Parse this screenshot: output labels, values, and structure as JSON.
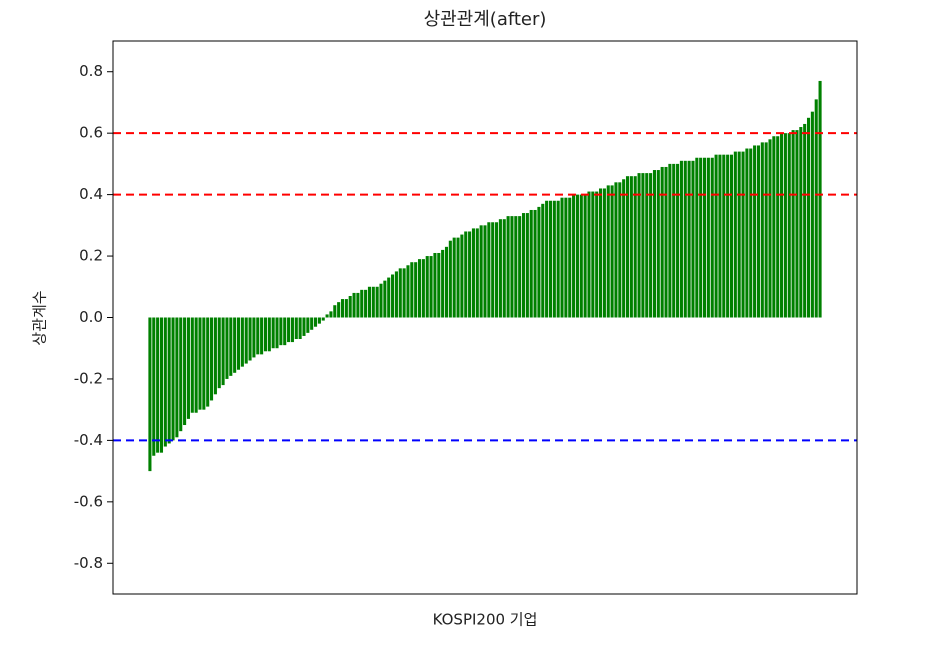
{
  "chart_data": {
    "type": "bar",
    "title": "상관관계(after)",
    "xlabel": "KOSPI200 기업",
    "ylabel": "상관계수",
    "categories": [
      null,
      null,
      null,
      null,
      null,
      null,
      null,
      null,
      null,
      null,
      null,
      null,
      null,
      null,
      null,
      null,
      null,
      null,
      null,
      null,
      null,
      null,
      null,
      null,
      null,
      null,
      null,
      null,
      null,
      null,
      null,
      null,
      null,
      null,
      null,
      null,
      null,
      null,
      null,
      null,
      null,
      null,
      null,
      null,
      null,
      null,
      null,
      null,
      null,
      null,
      null,
      null,
      null,
      null,
      null,
      null,
      null,
      null,
      null,
      null,
      null,
      null,
      null,
      null,
      null,
      null,
      null,
      null,
      null,
      null,
      null,
      null,
      null,
      null,
      null,
      null,
      null,
      null,
      null,
      null,
      null,
      null,
      null,
      null,
      null,
      null,
      null,
      null,
      null,
      null,
      null,
      null,
      null,
      null,
      null,
      null,
      null,
      null,
      null,
      null,
      null,
      null,
      null,
      null,
      null,
      null,
      null,
      null,
      null,
      null,
      null,
      null,
      null,
      null,
      null,
      null,
      null,
      null,
      null,
      null,
      null,
      null,
      null,
      null,
      null,
      null,
      null,
      null,
      null,
      null,
      null,
      null,
      null,
      null,
      null,
      null,
      null,
      null,
      null,
      null,
      null,
      null,
      null,
      null,
      null,
      null,
      null,
      null,
      null,
      null,
      null,
      null,
      null,
      null,
      null,
      null,
      null,
      null,
      null,
      null,
      null,
      null,
      null,
      null,
      null,
      null,
      null,
      null,
      null,
      null,
      null,
      null,
      null,
      null,
      null
    ],
    "values": [
      -0.5,
      -0.45,
      -0.44,
      -0.44,
      -0.42,
      -0.41,
      -0.4,
      -0.39,
      -0.37,
      -0.35,
      -0.33,
      -0.31,
      -0.31,
      -0.3,
      -0.3,
      -0.29,
      -0.27,
      -0.25,
      -0.23,
      -0.22,
      -0.2,
      -0.19,
      -0.18,
      -0.17,
      -0.16,
      -0.15,
      -0.14,
      -0.13,
      -0.12,
      -0.12,
      -0.11,
      -0.11,
      -0.1,
      -0.1,
      -0.09,
      -0.09,
      -0.08,
      -0.08,
      -0.07,
      -0.07,
      -0.06,
      -0.05,
      -0.04,
      -0.03,
      -0.02,
      -0.01,
      0.01,
      0.02,
      0.04,
      0.05,
      0.06,
      0.06,
      0.07,
      0.08,
      0.08,
      0.09,
      0.09,
      0.1,
      0.1,
      0.1,
      0.11,
      0.12,
      0.13,
      0.14,
      0.15,
      0.16,
      0.16,
      0.17,
      0.18,
      0.18,
      0.19,
      0.19,
      0.2,
      0.2,
      0.21,
      0.21,
      0.22,
      0.23,
      0.25,
      0.26,
      0.26,
      0.27,
      0.28,
      0.28,
      0.29,
      0.29,
      0.3,
      0.3,
      0.31,
      0.31,
      0.31,
      0.32,
      0.32,
      0.33,
      0.33,
      0.33,
      0.33,
      0.34,
      0.34,
      0.35,
      0.35,
      0.36,
      0.37,
      0.38,
      0.38,
      0.38,
      0.38,
      0.39,
      0.39,
      0.39,
      0.4,
      0.4,
      0.4,
      0.4,
      0.41,
      0.41,
      0.41,
      0.42,
      0.42,
      0.43,
      0.43,
      0.44,
      0.44,
      0.45,
      0.46,
      0.46,
      0.46,
      0.47,
      0.47,
      0.47,
      0.47,
      0.48,
      0.48,
      0.49,
      0.49,
      0.5,
      0.5,
      0.5,
      0.51,
      0.51,
      0.51,
      0.51,
      0.52,
      0.52,
      0.52,
      0.52,
      0.52,
      0.53,
      0.53,
      0.53,
      0.53,
      0.53,
      0.54,
      0.54,
      0.54,
      0.55,
      0.55,
      0.56,
      0.56,
      0.57,
      0.57,
      0.58,
      0.59,
      0.59,
      0.6,
      0.6,
      0.6,
      0.61,
      0.61,
      0.62,
      0.63,
      0.65,
      0.67,
      0.71,
      0.77
    ],
    "color": "#008000",
    "ylim": [
      -0.9,
      0.9
    ],
    "yticks": [
      -0.8,
      -0.6,
      -0.4,
      -0.2,
      {
        "value": 0,
        "label": "0.0"
      },
      0.2,
      0.4,
      0.6,
      0.8
    ],
    "hlines": [
      {
        "value": 0.6,
        "color": "#ff0000"
      },
      {
        "value": 0.4,
        "color": "#ff0000"
      },
      {
        "value": -0.4,
        "color": "#0000ff"
      }
    ]
  }
}
